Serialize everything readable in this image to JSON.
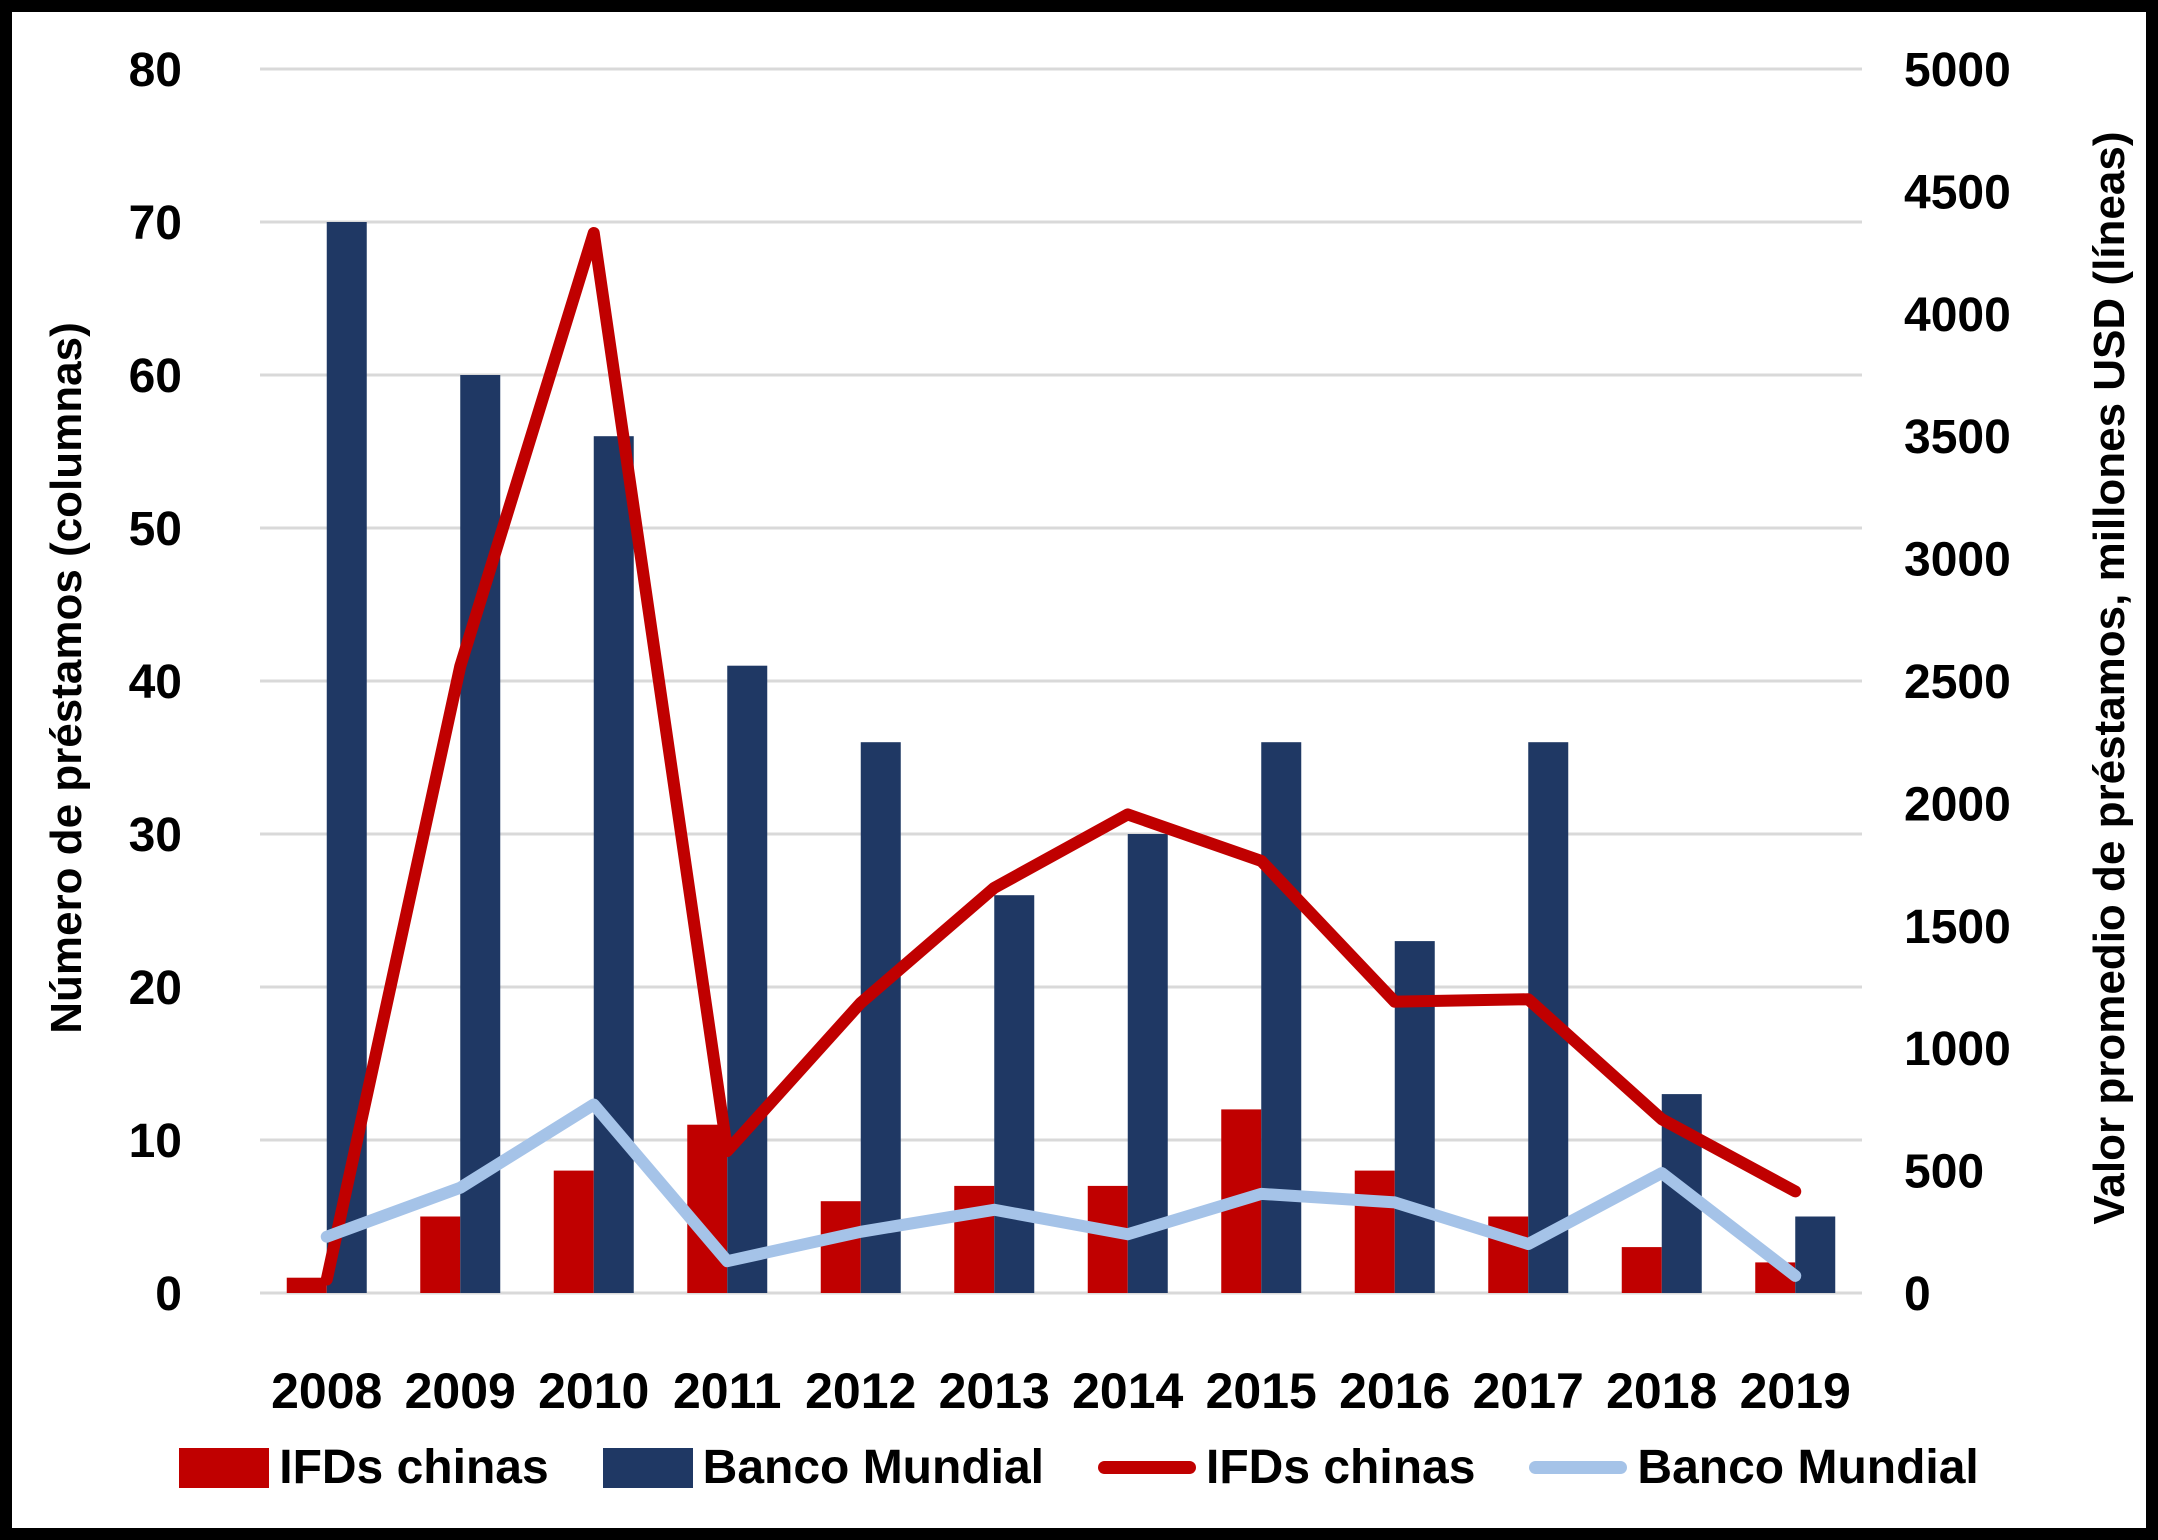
{
  "chart_data": {
    "type": "combo-bar-line",
    "categories": [
      "2008",
      "2009",
      "2010",
      "2011",
      "2012",
      "2013",
      "2014",
      "2015",
      "2016",
      "2017",
      "2018",
      "2019"
    ],
    "left_axis": {
      "label": "Número de préstamos (columnas)",
      "min": 0,
      "max": 80,
      "step": 10
    },
    "right_axis": {
      "label": "Valor promedio de préstamos, millones USD (líneas)",
      "min": 0,
      "max": 5000,
      "step": 500
    },
    "grid": true,
    "legend_position": "bottom",
    "series": [
      {
        "id": "bar-ifds-chinas",
        "name": "IFDs chinas",
        "type": "bar",
        "axis": "left",
        "color": "#C00000",
        "values": [
          1,
          5,
          8,
          11,
          6,
          7,
          7,
          12,
          8,
          5,
          3,
          2
        ]
      },
      {
        "id": "bar-banco-mundial",
        "name": "Banco Mundial",
        "type": "bar",
        "axis": "left",
        "color": "#1F3864",
        "values": [
          70,
          60,
          56,
          41,
          36,
          26,
          30,
          36,
          23,
          36,
          13,
          5
        ]
      },
      {
        "id": "line-ifds-chinas",
        "name": "IFDs chinas",
        "type": "line",
        "axis": "right",
        "color": "#C00000",
        "values": [
          55,
          2560,
          4330,
          580,
          1185,
          1655,
          1955,
          1765,
          1190,
          1200,
          710,
          415
        ]
      },
      {
        "id": "line-banco-mundial",
        "name": "Banco Mundial",
        "type": "line",
        "axis": "right",
        "color": "#A5C3E8",
        "values": [
          230,
          430,
          770,
          130,
          250,
          340,
          240,
          405,
          370,
          200,
          490,
          70
        ]
      }
    ]
  },
  "legend": {
    "items": [
      {
        "label": "IFDs chinas",
        "swatch": "rect",
        "color": "#C00000"
      },
      {
        "label": "Banco Mundial",
        "swatch": "rect",
        "color": "#1F3864"
      },
      {
        "label": "IFDs chinas",
        "swatch": "line",
        "color": "#C00000"
      },
      {
        "label": "Banco Mundial",
        "swatch": "line",
        "color": "#A5C3E8"
      }
    ]
  },
  "colors": {
    "grid": "#D9D9D9",
    "text": "#000000",
    "frame": "#000000",
    "background": "#FFFFFF"
  }
}
